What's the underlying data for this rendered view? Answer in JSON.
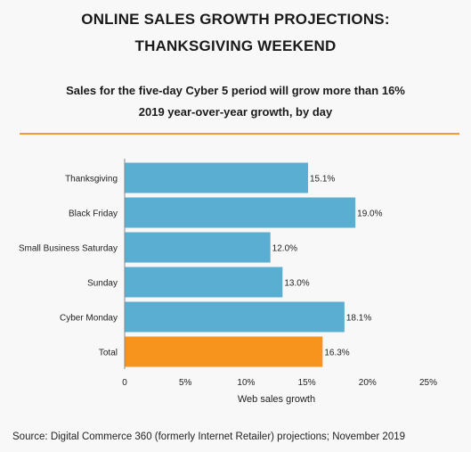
{
  "header": {
    "title_line1": "ONLINE SALES GROWTH PROJECTIONS:",
    "title_line2": "THANKSGIVING WEEKEND",
    "subtitle_line1": "Sales for the five-day Cyber 5 period will grow more than 16%",
    "subtitle_line2": "2019 year-over-year growth, by day"
  },
  "footer": {
    "source": "Source: Digital Commerce 360 (formerly Internet Retailer) projections; November 2019"
  },
  "colors": {
    "bar": "#5aaed1",
    "highlight": "#f7941d",
    "rule": "#f39c34"
  },
  "chart_data": {
    "type": "bar",
    "orientation": "horizontal",
    "categories": [
      "Thanksgiving",
      "Black Friday",
      "Small Business Saturday",
      "Sunday",
      "Cyber Monday",
      "Total"
    ],
    "values": [
      15.1,
      19.0,
      12.0,
      13.0,
      18.1,
      16.3
    ],
    "data_labels": [
      "15.1%",
      "19.0%",
      "12.0%",
      "13.0%",
      "18.1%",
      "16.3%"
    ],
    "highlight_category": "Total",
    "xlabel": "Web sales growth",
    "ylabel": "",
    "xlim": [
      0,
      25
    ],
    "xticks": [
      0,
      5,
      10,
      15,
      20,
      25
    ],
    "xtick_labels": [
      "0",
      "5%",
      "10%",
      "15%",
      "20%",
      "25%"
    ],
    "grid": false,
    "legend": "none"
  }
}
